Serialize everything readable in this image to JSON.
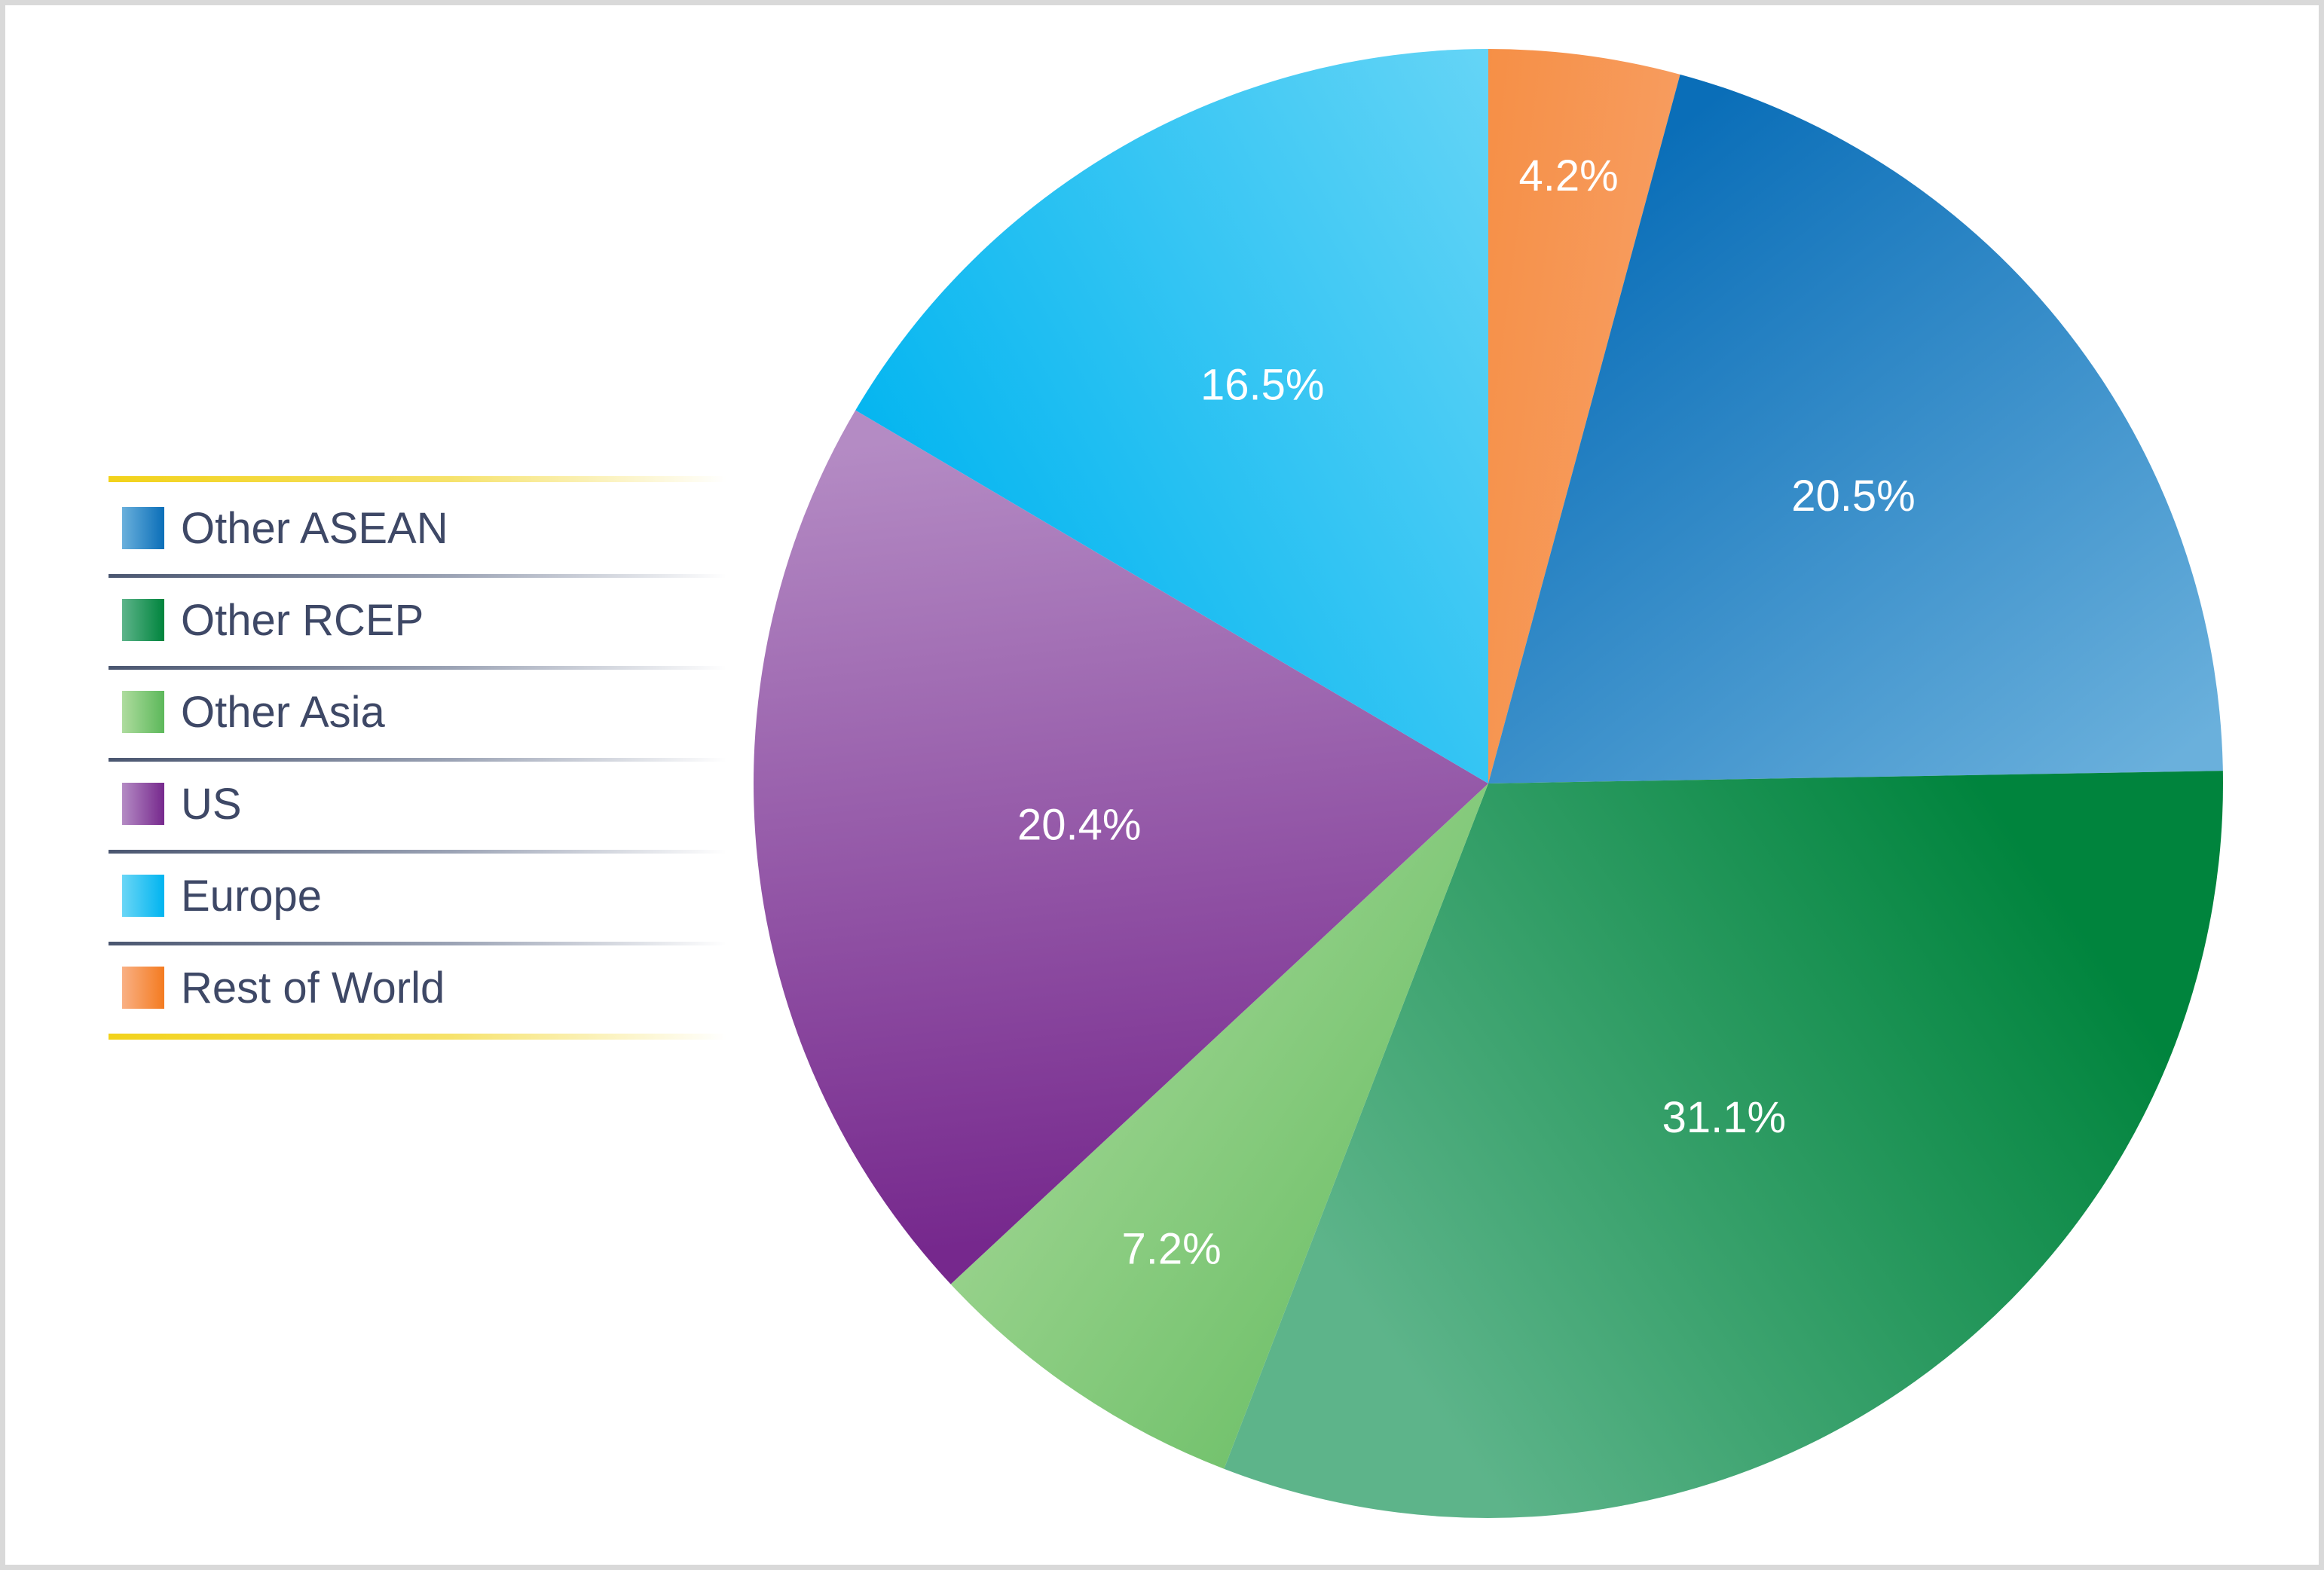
{
  "chart_data": {
    "type": "pie",
    "title": "",
    "legend_position": "left",
    "slices": [
      {
        "name": "Rest of World",
        "value": 4.2,
        "label": "4.2%",
        "color_dark": "#f47b20",
        "color_light": "#f9b084"
      },
      {
        "name": "Other ASEAN",
        "value": 20.5,
        "label": "20.5%",
        "color_dark": "#0a6eb8",
        "color_light": "#6ab0dc"
      },
      {
        "name": "Other RCEP",
        "value": 31.1,
        "label": "31.1%",
        "color_dark": "#00843d",
        "color_light": "#5db48a"
      },
      {
        "name": "Other Asia",
        "value": 7.2,
        "label": "7.2%",
        "color_dark": "#5cb85a",
        "color_light": "#aedc9e"
      },
      {
        "name": "US",
        "value": 20.4,
        "label": "20.4%",
        "color_dark": "#76288d",
        "color_light": "#b48bc4"
      },
      {
        "name": "Europe",
        "value": 16.5,
        "label": "16.5%",
        "color_dark": "#00b4f0",
        "color_light": "#6ad6f6"
      }
    ],
    "legend": [
      "Other ASEAN",
      "Other RCEP",
      "Other Asia",
      "US",
      "Europe",
      "Rest of World"
    ]
  }
}
